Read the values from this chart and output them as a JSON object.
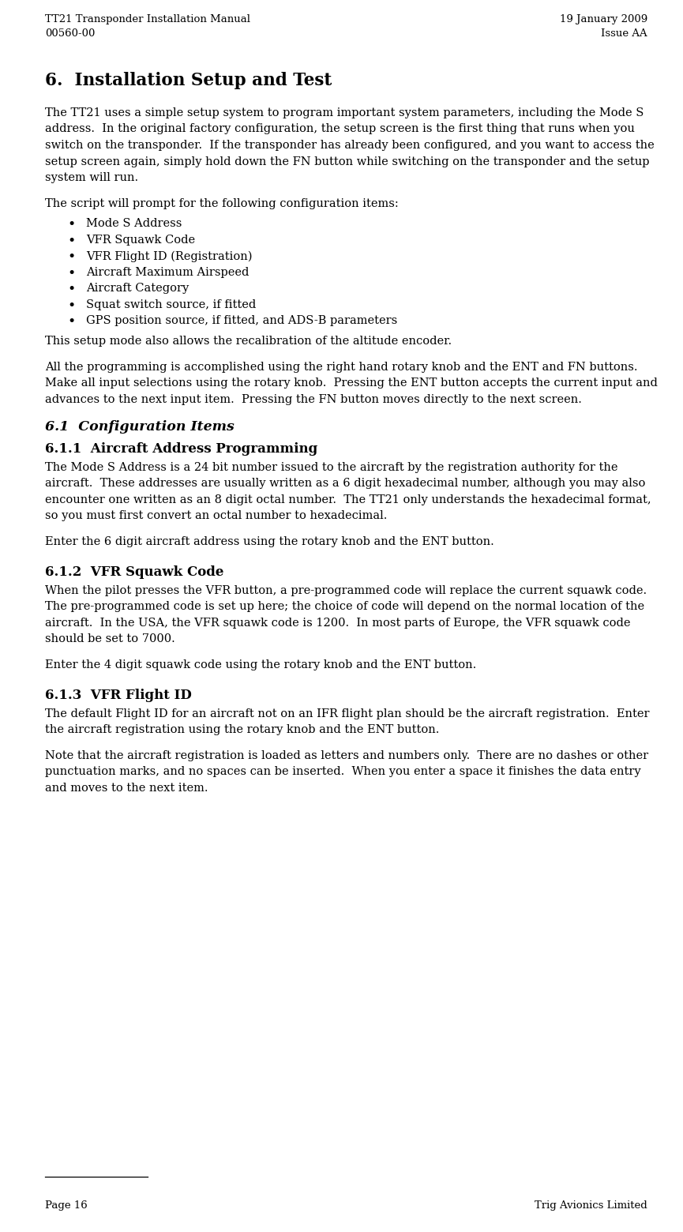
{
  "header_left_line1": "TT21 Transponder Installation Manual",
  "header_left_line2": "00560-00",
  "header_right_line1": "19 January 2009",
  "header_right_line2": "Issue AA",
  "section_title": "6.  Installation Setup and Test",
  "para1_lines": [
    "The TT21 uses a simple setup system to program important system parameters, including the Mode S",
    "address.  In the original factory configuration, the setup screen is the first thing that runs when you",
    "switch on the transponder.  If the transponder has already been configured, and you want to access the",
    "setup screen again, simply hold down the FN button while switching on the transponder and the setup",
    "system will run."
  ],
  "para2": "The script will prompt for the following configuration items:",
  "bullets": [
    "Mode S Address",
    "VFR Squawk Code",
    "VFR Flight ID (Registration)",
    "Aircraft Maximum Airspeed",
    "Aircraft Category",
    "Squat switch source, if fitted",
    "GPS position source, if fitted, and ADS-B parameters"
  ],
  "para3": "This setup mode also allows the recalibration of the altitude encoder.",
  "para4_lines": [
    "All the programming is accomplished using the right hand rotary knob and the ENT and FN buttons.",
    "Make all input selections using the rotary knob.  Pressing the ENT button accepts the current input and",
    "advances to the next input item.  Pressing the FN button moves directly to the next screen."
  ],
  "sub_section_title": "6.1  Configuration Items",
  "sub_sub_title1": "6.1.1  Aircraft Address Programming",
  "para5_lines": [
    "The Mode S Address is a 24 bit number issued to the aircraft by the registration authority for the",
    "aircraft.  These addresses are usually written as a 6 digit hexadecimal number, although you may also",
    "encounter one written as an 8 digit octal number.  The TT21 only understands the hexadecimal format,",
    "so you must first convert an octal number to hexadecimal."
  ],
  "para6": "Enter the 6 digit aircraft address using the rotary knob and the ENT button.",
  "sub_sub_title2": "6.1.2  VFR Squawk Code",
  "para7_lines": [
    "When the pilot presses the VFR button, a pre-programmed code will replace the current squawk code.",
    "The pre-programmed code is set up here; the choice of code will depend on the normal location of the",
    "aircraft.  In the USA, the VFR squawk code is 1200.  In most parts of Europe, the VFR squawk code",
    "should be set to 7000."
  ],
  "para8": "Enter the 4 digit squawk code using the rotary knob and the ENT button.",
  "sub_sub_title3": "6.1.3  VFR Flight ID",
  "para9_lines": [
    "The default Flight ID for an aircraft not on an IFR flight plan should be the aircraft registration.  Enter",
    "the aircraft registration using the rotary knob and the ENT button."
  ],
  "para10_lines": [
    "Note that the aircraft registration is loaded as letters and numbers only.  There are no dashes or other",
    "punctuation marks, and no spaces can be inserted.  When you enter a space it finishes the data entry",
    "and moves to the next item."
  ],
  "footer_left": "Page 16",
  "footer_right": "Trig Avionics Limited",
  "bg_color": "#ffffff",
  "text_color": "#000000",
  "font_size_body": 10.5,
  "font_size_header": 9.5,
  "font_size_section": 15.5,
  "font_size_subsection": 12.5,
  "font_size_subsubsection": 12.0
}
